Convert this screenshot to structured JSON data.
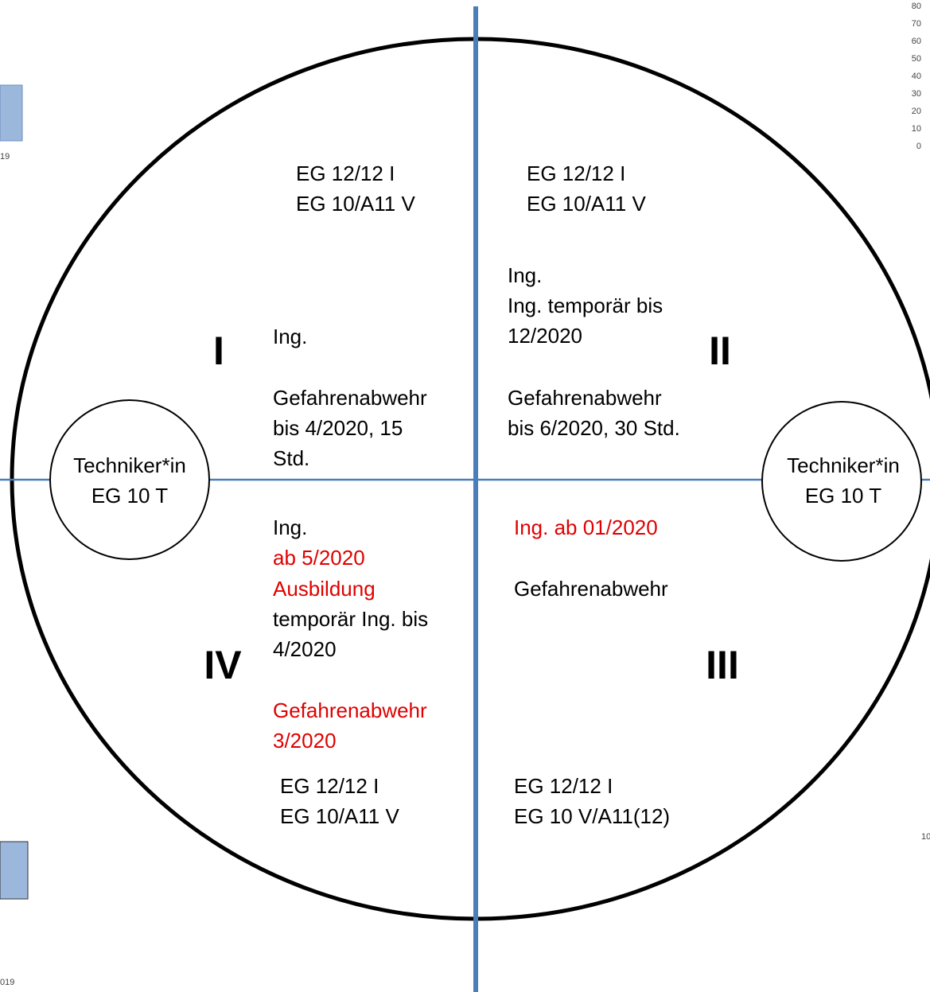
{
  "quadrants": [
    {
      "numeral": "I",
      "grade": [
        "EG 12/12 I",
        "EG 10/A11 V"
      ],
      "lines": [
        "Ing.",
        "Gefahrenabwehr",
        "bis 4/2020, 15",
        "Std."
      ]
    },
    {
      "numeral": "II",
      "grade": [
        "EG 12/12 I",
        "EG 10/A11 V"
      ],
      "lines": [
        "Ing.",
        "Ing. temporär bis",
        "12/2020",
        "Gefahrenabwehr",
        "bis 6/2020, 30 Std."
      ]
    },
    {
      "numeral": "III",
      "grade": [
        "EG 12/12 I",
        "EG 10 V/A11(12)"
      ],
      "lines": [
        "Ing. ab 01/2020",
        "Gefahrenabwehr"
      ]
    },
    {
      "numeral": "IV",
      "grade": [
        "EG 12/12 I",
        "EG 10/A11 V"
      ],
      "lines": [
        "Ing.",
        "ab 5/2020",
        "Ausbildung",
        "temporär Ing. bis",
        "4/2020",
        "Gefahrenabwehr",
        "3/2020"
      ]
    }
  ],
  "side_nodes": [
    {
      "label": [
        "Techniker*in",
        "EG 10 T"
      ]
    },
    {
      "label": [
        "Techniker*in",
        "EG 10 T"
      ]
    }
  ],
  "fragments": {
    "top_right_axis": [
      "80",
      "70",
      "60",
      "50",
      "40",
      "30",
      "20",
      "10",
      "0"
    ],
    "left_top": "19",
    "left_bottom": "019",
    "right_bottom": "10"
  }
}
